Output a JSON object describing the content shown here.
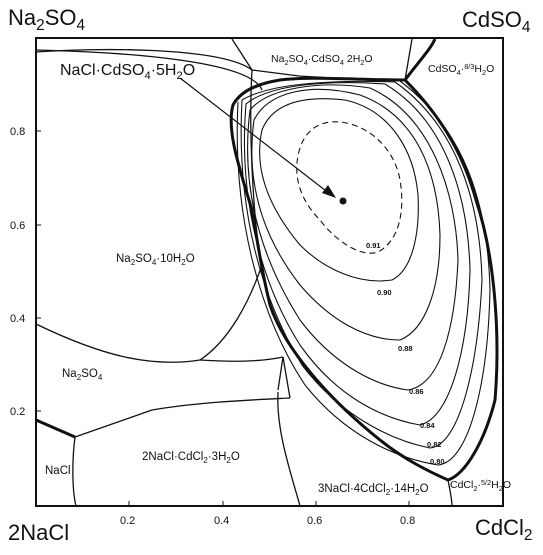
{
  "corners": {
    "top_left": {
      "main": "Na",
      "sub1": "2",
      "mid": "SO",
      "sub2": "4"
    },
    "top_right": {
      "main": "CdSO",
      "sub1": "4"
    },
    "bottom_left": {
      "main": "2NaCl"
    },
    "bottom_right": {
      "main": "CdCl",
      "sub1": "2"
    }
  },
  "axes": {
    "x_ticks": [
      "0.2",
      "0.4",
      "0.6",
      "0.8"
    ],
    "y_ticks": [
      "0.8",
      "0.6",
      "0.4",
      "0.2"
    ]
  },
  "callout": {
    "p1": "NaCl·CdSO",
    "s1": "4",
    "p2": "·5H",
    "s2": "2",
    "p3": "O"
  },
  "phases": {
    "na2so4_cdso4": {
      "p1": "Na",
      "s1": "2",
      "p2": "SO",
      "s2": "4",
      "p3": "·CdSO",
      "s3": "4",
      "p4": " 2H",
      "s4": "2",
      "p5": "O"
    },
    "cdso4_hyd": {
      "p1": "CdSO",
      "s1": "4",
      "p2": "·",
      "frac": "8/3",
      "p3": "H",
      "s3": "2",
      "p4": "O"
    },
    "na2so4_10": {
      "p1": "Na",
      "s1": "2",
      "p2": "SO",
      "s2": "4",
      "p3": "·10H",
      "s3": "2",
      "p4": "O"
    },
    "na2so4": {
      "p1": "Na",
      "s1": "2",
      "p2": "SO",
      "s2": "4"
    },
    "nacl": {
      "p1": "NaCl"
    },
    "nacl_cdcl2": {
      "p1": "2NaCl·CdCl",
      "s1": "2",
      "p2": "·3H",
      "s2": "2",
      "p3": "O"
    },
    "nacl_4cdcl2": {
      "p1": "3NaCl·4CdCl",
      "s1": "2",
      "p2": "·14H",
      "s2": "2",
      "p3": "O"
    },
    "cdcl2_hyd": {
      "p1": "CdCl",
      "s1": "2",
      "p2": "·",
      "frac": "5/2",
      "p3": "H",
      "s3": "2",
      "p4": "O"
    }
  },
  "contour_labels": [
    "0.91",
    "0.90",
    "0.88",
    "0.86",
    "0.84",
    "0.82",
    "0.80"
  ]
}
